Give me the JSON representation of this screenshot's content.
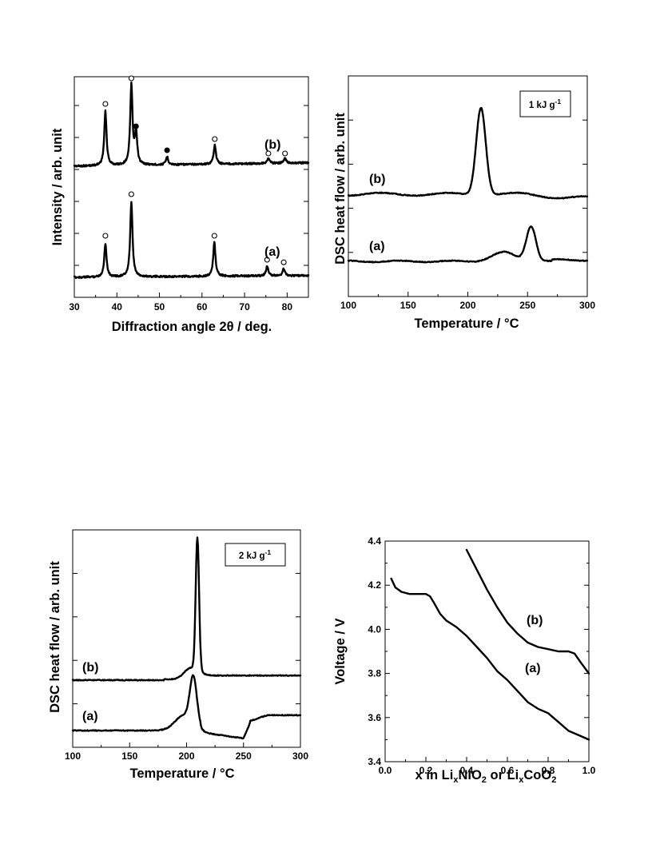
{
  "chart_data": [
    {
      "type": "line",
      "panel": "xrd",
      "xlabel": "Diffraction angle 2θ / deg.",
      "ylabel": "Intensity / arb. unit",
      "xlim": [
        30,
        85
      ],
      "x_ticks": [
        "30",
        "40",
        "50",
        "60",
        "70",
        "80"
      ],
      "series": [
        {
          "name": "(b)",
          "baseline": 0.62,
          "peaks": [
            {
              "x": 37.3,
              "height": 1.7,
              "marker": "open"
            },
            {
              "x": 43.4,
              "height": 2.5,
              "marker": "open"
            },
            {
              "x": 44.5,
              "height": 1.0,
              "marker": "filled"
            },
            {
              "x": 51.8,
              "height": 0.25,
              "marker": "filled"
            },
            {
              "x": 63.0,
              "height": 0.6,
              "marker": "open"
            },
            {
              "x": 75.6,
              "height": 0.15,
              "marker": "open"
            },
            {
              "x": 79.5,
              "height": 0.15,
              "marker": "open"
            }
          ]
        },
        {
          "name": "(a)",
          "baseline": 0.0,
          "peaks": [
            {
              "x": 37.3,
              "height": 1.05,
              "marker": "open"
            },
            {
              "x": 43.4,
              "height": 2.35,
              "marker": "open"
            },
            {
              "x": 62.9,
              "height": 1.05,
              "marker": "open"
            },
            {
              "x": 75.3,
              "height": 0.3,
              "marker": "open"
            },
            {
              "x": 79.2,
              "height": 0.22,
              "marker": "open"
            }
          ]
        }
      ]
    },
    {
      "type": "line",
      "panel": "dsc1",
      "xlabel": "Temperature / °C",
      "ylabel": "DSC heat flow / arb. unit",
      "xlim": [
        100,
        300
      ],
      "x_ticks": [
        "100",
        "150",
        "200",
        "250",
        "300"
      ],
      "scale_label": "1 kJ g-1",
      "series": [
        {
          "name": "(b)",
          "baseline": 0.62,
          "peaks": [
            {
              "x": 211,
              "height": 2.5,
              "width": 4
            }
          ]
        },
        {
          "name": "(a)",
          "baseline": 0.0,
          "peaks": [
            {
              "x": 230,
              "height": 0.25,
              "width": 10
            },
            {
              "x": 253,
              "height": 1.0,
              "width": 4
            }
          ]
        }
      ]
    },
    {
      "type": "line",
      "panel": "dsc2",
      "xlabel": "Temperature / °C",
      "ylabel": "DSC heat flow / arb. unit",
      "xlim": [
        100,
        300
      ],
      "x_ticks": [
        "100",
        "150",
        "200",
        "250",
        "300"
      ],
      "scale_label": "2 kJ g-1",
      "series": [
        {
          "name": "(b)",
          "baseline": 0.45,
          "peaks": [
            {
              "x": 209.5,
              "height": 3.5,
              "width": 1.5
            },
            {
              "x": 204,
              "height": 0.3,
              "width": 6
            }
          ]
        },
        {
          "name": "(a)",
          "baseline": 0.0,
          "peaks": [
            {
              "x": 206,
              "height": 1.2,
              "width": 3
            },
            {
              "x": 198,
              "height": 0.4,
              "width": 8
            }
          ]
        }
      ]
    },
    {
      "type": "line",
      "panel": "voltage",
      "xlabel": "x in LixNiO2 or LixCoO2",
      "ylabel": "Voltage / V",
      "xlim": [
        0.0,
        1.0
      ],
      "ylim": [
        3.4,
        4.4
      ],
      "x_ticks": [
        "0.0",
        "0.2",
        "0.4",
        "0.6",
        "0.8",
        "1.0"
      ],
      "y_ticks": [
        "3.4",
        "3.6",
        "3.8",
        "4.0",
        "4.2",
        "4.4"
      ],
      "series": [
        {
          "name": "(a)",
          "x": [
            0.03,
            0.05,
            0.08,
            0.12,
            0.16,
            0.2,
            0.22,
            0.24,
            0.27,
            0.3,
            0.35,
            0.4,
            0.45,
            0.5,
            0.55,
            0.6,
            0.65,
            0.7,
            0.75,
            0.8,
            0.85,
            0.9,
            0.95,
            1.0
          ],
          "y": [
            4.23,
            4.19,
            4.17,
            4.16,
            4.16,
            4.16,
            4.15,
            4.12,
            4.07,
            4.04,
            4.01,
            3.97,
            3.92,
            3.87,
            3.81,
            3.77,
            3.72,
            3.67,
            3.64,
            3.62,
            3.58,
            3.54,
            3.52,
            3.5
          ]
        },
        {
          "name": "(b)",
          "x": [
            0.4,
            0.45,
            0.5,
            0.55,
            0.6,
            0.65,
            0.7,
            0.75,
            0.8,
            0.85,
            0.9,
            0.93,
            0.96,
            1.0
          ],
          "y": [
            4.36,
            4.27,
            4.18,
            4.1,
            4.03,
            3.98,
            3.94,
            3.92,
            3.91,
            3.9,
            3.9,
            3.89,
            3.85,
            3.8
          ]
        }
      ]
    }
  ]
}
